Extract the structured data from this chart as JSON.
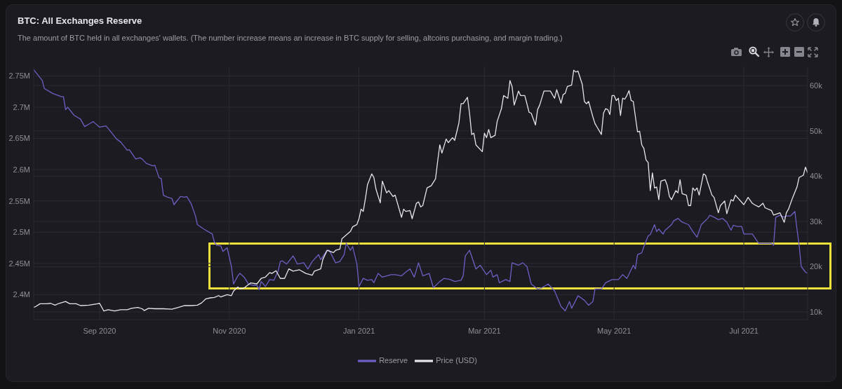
{
  "chart_data": {
    "type": "line",
    "title": "BTC: All Exchanges Reserve",
    "subtitle": "The amount of BTC held in all exchanges' wallets. (The number increase means an increase in BTC supply for selling, altcoins purchasing, and margin trading.)",
    "xlim": [
      "2020-08-01",
      "2021-07-31"
    ],
    "xticks": [
      {
        "value": "2020-09-01",
        "label": "Sep 2020"
      },
      {
        "value": "2020-11-01",
        "label": "Nov 2020"
      },
      {
        "value": "2021-01-01",
        "label": "Jan 2021"
      },
      {
        "value": "2021-03-01",
        "label": "Mar 2021"
      },
      {
        "value": "2021-05-01",
        "label": "May 2021"
      },
      {
        "value": "2021-07-01",
        "label": "Jul 2021"
      }
    ],
    "ylim": [
      2360000,
      2765000
    ],
    "yticks": [
      {
        "value": 2400000,
        "label": "2.4M"
      },
      {
        "value": 2450000,
        "label": "2.45M"
      },
      {
        "value": 2500000,
        "label": "2.5M"
      },
      {
        "value": 2550000,
        "label": "2.55M"
      },
      {
        "value": 2600000,
        "label": "2.6M"
      },
      {
        "value": 2650000,
        "label": "2.65M"
      },
      {
        "value": 2700000,
        "label": "2.7M"
      },
      {
        "value": 2750000,
        "label": "2.75M"
      }
    ],
    "y2lim": [
      8300,
      64200
    ],
    "y2ticks": [
      {
        "value": 10000,
        "label": "10k"
      },
      {
        "value": 20000,
        "label": "20k"
      },
      {
        "value": 30000,
        "label": "30k"
      },
      {
        "value": 40000,
        "label": "40k"
      },
      {
        "value": 50000,
        "label": "50k"
      },
      {
        "value": 60000,
        "label": "60k"
      }
    ],
    "grid": true,
    "legend": "bottom",
    "series": [
      {
        "name": "Reserve",
        "color": "#6b61c4",
        "x": [
          "2020-08-01",
          "2020-08-05",
          "2020-08-06",
          "2020-08-10",
          "2020-08-14",
          "2020-08-15",
          "2020-08-16",
          "2020-08-17",
          "2020-08-20",
          "2020-08-23",
          "2020-08-25",
          "2020-08-27",
          "2020-08-29",
          "2020-08-30",
          "2020-09-01",
          "2020-09-04",
          "2020-09-06",
          "2020-09-09",
          "2020-09-11",
          "2020-09-14",
          "2020-09-15",
          "2020-09-18",
          "2020-09-20",
          "2020-09-21",
          "2020-09-23",
          "2020-09-26",
          "2020-09-27",
          "2020-09-29",
          "2020-09-30",
          "2020-10-01",
          "2020-10-03",
          "2020-10-05",
          "2020-10-06",
          "2020-10-09",
          "2020-10-11",
          "2020-10-12",
          "2020-10-14",
          "2020-10-16",
          "2020-10-17",
          "2020-10-20",
          "2020-10-24",
          "2020-10-25",
          "2020-10-26",
          "2020-10-28",
          "2020-10-29",
          "2020-10-31",
          "2020-11-02",
          "2020-11-03",
          "2020-11-05",
          "2020-11-06",
          "2020-11-08",
          "2020-11-10",
          "2020-11-12",
          "2020-11-14",
          "2020-11-15",
          "2020-11-16",
          "2020-11-18",
          "2020-11-20",
          "2020-11-22",
          "2020-11-24",
          "2020-11-25",
          "2020-11-26",
          "2020-11-28",
          "2020-12-01",
          "2020-12-02",
          "2020-12-03",
          "2020-12-06",
          "2020-12-08",
          "2020-12-10",
          "2020-12-13",
          "2020-12-14",
          "2020-12-17",
          "2020-12-18",
          "2020-12-21",
          "2020-12-23",
          "2020-12-25",
          "2020-12-26",
          "2020-12-28",
          "2020-12-29",
          "2020-12-31",
          "2021-01-01",
          "2021-01-03",
          "2021-01-05",
          "2021-01-07",
          "2021-01-08",
          "2021-01-10",
          "2021-01-12",
          "2021-01-16",
          "2021-01-18",
          "2021-01-21",
          "2021-01-23",
          "2021-01-25",
          "2021-01-27",
          "2021-01-29",
          "2021-01-31",
          "2021-02-03",
          "2021-02-05",
          "2021-02-08",
          "2021-02-10",
          "2021-02-13",
          "2021-02-15",
          "2021-02-18",
          "2021-02-19",
          "2021-02-20",
          "2021-02-22",
          "2021-02-25",
          "2021-02-27",
          "2021-03-02",
          "2021-03-04",
          "2021-03-05",
          "2021-03-07",
          "2021-03-08",
          "2021-03-11",
          "2021-03-13",
          "2021-03-14",
          "2021-03-17",
          "2021-03-19",
          "2021-03-21",
          "2021-03-23",
          "2021-03-26",
          "2021-03-28",
          "2021-03-31",
          "2021-04-03",
          "2021-04-06",
          "2021-04-08",
          "2021-04-10",
          "2021-04-11",
          "2021-04-14",
          "2021-04-15",
          "2021-04-17",
          "2021-04-19",
          "2021-04-21",
          "2021-04-22",
          "2021-04-25",
          "2021-04-27",
          "2021-04-30",
          "2021-05-03",
          "2021-05-05",
          "2021-05-07",
          "2021-05-10",
          "2021-05-11",
          "2021-05-12",
          "2021-05-14",
          "2021-05-15",
          "2021-05-17",
          "2021-05-18",
          "2021-05-20",
          "2021-05-21",
          "2021-05-22",
          "2021-05-24",
          "2021-05-25",
          "2021-05-28",
          "2021-05-29",
          "2021-05-31",
          "2021-06-02",
          "2021-06-05",
          "2021-06-07",
          "2021-06-09",
          "2021-06-11",
          "2021-06-14",
          "2021-06-15",
          "2021-06-17",
          "2021-06-19",
          "2021-06-21",
          "2021-06-23",
          "2021-06-25",
          "2021-06-26",
          "2021-06-28",
          "2021-06-30",
          "2021-07-01",
          "2021-07-04",
          "2021-07-05",
          "2021-07-08",
          "2021-07-10",
          "2021-07-14",
          "2021-07-15",
          "2021-07-16",
          "2021-07-18",
          "2021-07-20",
          "2021-07-21",
          "2021-07-23",
          "2021-07-25",
          "2021-07-26",
          "2021-07-27",
          "2021-07-28",
          "2021-07-30",
          "2021-07-31"
        ],
        "values": [
          2760000,
          2743000,
          2730000,
          2722000,
          2717000,
          2717000,
          2696000,
          2700000,
          2687000,
          2681000,
          2669000,
          2673000,
          2677000,
          2674000,
          2668000,
          2670000,
          2662000,
          2649000,
          2644000,
          2631000,
          2632000,
          2617000,
          2619000,
          2617000,
          2610000,
          2606000,
          2607000,
          2587000,
          2586000,
          2559000,
          2556000,
          2554000,
          2544000,
          2557000,
          2556000,
          2557000,
          2546000,
          2527000,
          2512000,
          2505000,
          2497000,
          2484000,
          2479000,
          2478000,
          2469000,
          2475000,
          2445000,
          2417000,
          2430000,
          2434000,
          2428000,
          2417000,
          2415000,
          2415000,
          2408000,
          2421000,
          2413000,
          2424000,
          2423000,
          2438000,
          2453000,
          2454000,
          2449000,
          2462000,
          2456000,
          2449000,
          2451000,
          2441000,
          2453000,
          2464000,
          2456000,
          2471000,
          2471000,
          2451000,
          2453000,
          2464000,
          2482000,
          2471000,
          2477000,
          2449000,
          2413000,
          2426000,
          2423000,
          2424000,
          2419000,
          2434000,
          2428000,
          2432000,
          2432000,
          2430000,
          2436000,
          2441000,
          2428000,
          2451000,
          2430000,
          2434000,
          2411000,
          2421000,
          2426000,
          2424000,
          2421000,
          2423000,
          2430000,
          2462000,
          2471000,
          2441000,
          2447000,
          2432000,
          2439000,
          2428000,
          2432000,
          2419000,
          2424000,
          2421000,
          2451000,
          2447000,
          2451000,
          2445000,
          2417000,
          2409000,
          2411000,
          2417000,
          2406000,
          2381000,
          2374000,
          2389000,
          2378000,
          2398000,
          2396000,
          2391000,
          2383000,
          2389000,
          2409000,
          2409000,
          2419000,
          2424000,
          2424000,
          2432000,
          2426000,
          2447000,
          2441000,
          2464000,
          2467000,
          2477000,
          2494000,
          2496000,
          2512000,
          2501000,
          2505000,
          2497000,
          2503000,
          2512000,
          2518000,
          2522000,
          2516000,
          2512000,
          2501000,
          2492000,
          2512000,
          2522000,
          2527000,
          2524000,
          2520000,
          2522000,
          2516000,
          2503000,
          2511000,
          2509000,
          2509000,
          2497000,
          2497000,
          2497000,
          2482000,
          2482000,
          2482000,
          2479000,
          2524000,
          2527000,
          2524000,
          2526000,
          2526000,
          2533000,
          2505000,
          2479000,
          2445000,
          2436000,
          2434000
        ]
      },
      {
        "name": "Price (USD)",
        "color": "#e6e6ea",
        "axis": "y2",
        "x": [
          "2020-08-01",
          "2020-08-02",
          "2020-08-04",
          "2020-08-07",
          "2020-08-09",
          "2020-08-11",
          "2020-08-13",
          "2020-08-16",
          "2020-08-18",
          "2020-08-21",
          "2020-08-23",
          "2020-08-27",
          "2020-08-31",
          "2020-09-01",
          "2020-09-03",
          "2020-09-05",
          "2020-09-08",
          "2020-09-11",
          "2020-09-14",
          "2020-09-16",
          "2020-09-19",
          "2020-09-21",
          "2020-09-22",
          "2020-09-24",
          "2020-09-27",
          "2020-10-01",
          "2020-10-05",
          "2020-10-08",
          "2020-10-11",
          "2020-10-14",
          "2020-10-17",
          "2020-10-19",
          "2020-10-21",
          "2020-10-23",
          "2020-10-25",
          "2020-10-27",
          "2020-10-28",
          "2020-10-31",
          "2020-11-02",
          "2020-11-03",
          "2020-11-05",
          "2020-11-06",
          "2020-11-08",
          "2020-11-11",
          "2020-11-14",
          "2020-11-16",
          "2020-11-18",
          "2020-11-20",
          "2020-11-21",
          "2020-11-23",
          "2020-11-25",
          "2020-11-27",
          "2020-11-29",
          "2020-12-01",
          "2020-12-04",
          "2020-12-07",
          "2020-12-10",
          "2020-12-11",
          "2020-12-14",
          "2020-12-15",
          "2020-12-17",
          "2020-12-20",
          "2020-12-21",
          "2020-12-23",
          "2020-12-24",
          "2020-12-26",
          "2020-12-28",
          "2020-12-29",
          "2020-12-31",
          "2021-01-01",
          "2021-01-02",
          "2021-01-03",
          "2021-01-04",
          "2021-01-05",
          "2021-01-07",
          "2021-01-08",
          "2021-01-09",
          "2021-01-11",
          "2021-01-12",
          "2021-01-14",
          "2021-01-15",
          "2021-01-17",
          "2021-01-18",
          "2021-01-21",
          "2021-01-22",
          "2021-01-23",
          "2021-01-25",
          "2021-01-26",
          "2021-01-28",
          "2021-01-29",
          "2021-01-30",
          "2021-01-31",
          "2021-02-02",
          "2021-02-04",
          "2021-02-06",
          "2021-02-07",
          "2021-02-08",
          "2021-02-09",
          "2021-02-11",
          "2021-02-12",
          "2021-02-14",
          "2021-02-15",
          "2021-02-16",
          "2021-02-17",
          "2021-02-18",
          "2021-02-19",
          "2021-02-21",
          "2021-02-22",
          "2021-02-23",
          "2021-02-24",
          "2021-02-25",
          "2021-02-28",
          "2021-03-01",
          "2021-03-02",
          "2021-03-03",
          "2021-03-04",
          "2021-03-06",
          "2021-03-07",
          "2021-03-09",
          "2021-03-10",
          "2021-03-12",
          "2021-03-13",
          "2021-03-14",
          "2021-03-15",
          "2021-03-16",
          "2021-03-17",
          "2021-03-18",
          "2021-03-20",
          "2021-03-22",
          "2021-03-23",
          "2021-03-25",
          "2021-03-26",
          "2021-03-27",
          "2021-03-29",
          "2021-04-01",
          "2021-04-03",
          "2021-04-04",
          "2021-04-06",
          "2021-04-07",
          "2021-04-08",
          "2021-04-09",
          "2021-04-11",
          "2021-04-12",
          "2021-04-13",
          "2021-04-14",
          "2021-04-16",
          "2021-04-17",
          "2021-04-18",
          "2021-04-19",
          "2021-04-21",
          "2021-04-22",
          "2021-04-23",
          "2021-04-25",
          "2021-04-26",
          "2021-04-27",
          "2021-04-28",
          "2021-04-29",
          "2021-04-30",
          "2021-05-01",
          "2021-05-02",
          "2021-05-03",
          "2021-05-04",
          "2021-05-05",
          "2021-05-06",
          "2021-05-07",
          "2021-05-08",
          "2021-05-09",
          "2021-05-10",
          "2021-05-12",
          "2021-05-13",
          "2021-05-14",
          "2021-05-15",
          "2021-05-16",
          "2021-05-17",
          "2021-05-18",
          "2021-05-19",
          "2021-05-20",
          "2021-05-21",
          "2021-05-22",
          "2021-05-23",
          "2021-05-25",
          "2021-05-26",
          "2021-05-27",
          "2021-05-28",
          "2021-05-30",
          "2021-05-31",
          "2021-06-01",
          "2021-06-02",
          "2021-06-04",
          "2021-06-05",
          "2021-06-06",
          "2021-06-07",
          "2021-06-08",
          "2021-06-09",
          "2021-06-10",
          "2021-06-12",
          "2021-06-13",
          "2021-06-14",
          "2021-06-16",
          "2021-06-17",
          "2021-06-19",
          "2021-06-20",
          "2021-06-22",
          "2021-06-23",
          "2021-06-25",
          "2021-06-26",
          "2021-06-27",
          "2021-07-01",
          "2021-07-03",
          "2021-07-05",
          "2021-07-06",
          "2021-07-08",
          "2021-07-10",
          "2021-07-11",
          "2021-07-14",
          "2021-07-15",
          "2021-07-18",
          "2021-07-20",
          "2021-07-21",
          "2021-07-22",
          "2021-07-24",
          "2021-07-26",
          "2021-07-27",
          "2021-07-29",
          "2021-07-30",
          "2021-07-31"
        ],
        "values": [
          11000,
          11200,
          11800,
          11800,
          11900,
          11500,
          11900,
          12300,
          11800,
          11800,
          11400,
          11500,
          11800,
          11900,
          10200,
          10500,
          10200,
          10500,
          10500,
          10800,
          11000,
          10700,
          10300,
          10800,
          10700,
          10700,
          10600,
          11000,
          11400,
          11400,
          11500,
          12000,
          12900,
          13100,
          13200,
          13600,
          13300,
          13800,
          13600,
          14600,
          15500,
          15100,
          15300,
          16400,
          16200,
          17400,
          17700,
          18700,
          18500,
          19100,
          17400,
          17400,
          19500,
          19000,
          19300,
          18500,
          18100,
          19000,
          19500,
          21600,
          23600,
          23100,
          23600,
          23900,
          26200,
          27000,
          27800,
          28800,
          29300,
          30600,
          32700,
          32200,
          35000,
          38100,
          40500,
          39700,
          37100,
          34100,
          38900,
          36300,
          36800,
          35500,
          35800,
          30900,
          32700,
          32200,
          32400,
          30600,
          34000,
          34300,
          33200,
          33500,
          37400,
          37900,
          39400,
          43300,
          46900,
          45100,
          48200,
          47400,
          48500,
          47900,
          49800,
          51800,
          56000,
          56000,
          57400,
          53900,
          49200,
          49500,
          46900,
          45400,
          49500,
          48500,
          50300,
          48500,
          49000,
          52100,
          54900,
          57800,
          57200,
          61100,
          59800,
          55700,
          57200,
          58800,
          57800,
          57800,
          54100,
          53900,
          51300,
          54700,
          55700,
          58800,
          58800,
          57200,
          59100,
          56100,
          58000,
          58300,
          59800,
          60100,
          63400,
          63000,
          63200,
          60300,
          56500,
          56000,
          56500,
          53100,
          51600,
          50800,
          49200,
          53900,
          54900,
          54700,
          53600,
          57800,
          57800,
          56700,
          57200,
          53400,
          57200,
          57000,
          57800,
          58900,
          56700,
          56500,
          49800,
          49900,
          46900,
          46100,
          43600,
          43000,
          36800,
          40700,
          37400,
          37600,
          34800,
          38900,
          39200,
          37900,
          35500,
          34800,
          36800,
          36300,
          39200,
          36100,
          35800,
          33500,
          33500,
          37400,
          36800,
          37400,
          35800,
          40500,
          40200,
          38600,
          35800,
          35300,
          31900,
          33500,
          34500,
          31700,
          34800,
          34500,
          35800,
          33700,
          35300,
          34000,
          33700,
          33200,
          34000,
          33000,
          32400,
          31400,
          31900,
          29800,
          31900,
          32700,
          35300,
          37600,
          39700,
          40200,
          42000,
          40700
        ]
      }
    ]
  }
}
